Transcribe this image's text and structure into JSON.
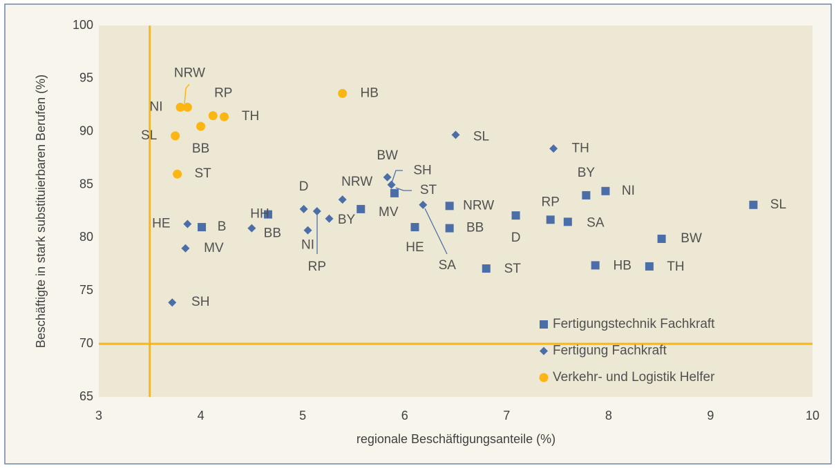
{
  "chart_data": {
    "type": "scatter",
    "xlabel": "regionale Beschäftigungsanteile (%)",
    "ylabel": "Beschäftigte in stark substituierbaren Berufen (%)",
    "xlim": [
      3,
      10
    ],
    "xticks": [
      3,
      4,
      5,
      6,
      7,
      8,
      9,
      10
    ],
    "ylim": [
      65,
      100
    ],
    "yticks": [
      65,
      70,
      75,
      80,
      85,
      90,
      95,
      100
    ],
    "reference_lines": {
      "x": 3.5,
      "y": 70,
      "color": "#fbb614"
    },
    "legend": "lower right",
    "series": [
      {
        "name": "Fertigungstechnik Fachkraft",
        "color": "#4c6ea8",
        "marker": "square",
        "labels": [
          "B",
          "HH",
          "MV",
          "ST",
          "HE",
          "NRW",
          "BB",
          "ST",
          "D",
          "RP",
          "SA",
          "BY",
          "NI",
          "HB",
          "TH",
          "BW",
          "SL"
        ],
        "x": [
          4.01,
          4.66,
          5.57,
          5.9,
          6.1,
          6.44,
          6.44,
          6.8,
          7.09,
          7.43,
          7.6,
          7.78,
          7.97,
          7.87,
          8.4,
          8.52,
          9.42
        ],
        "values": [
          81.0,
          82.2,
          82.7,
          84.2,
          81.0,
          83.0,
          80.9,
          77.1,
          82.1,
          81.7,
          81.5,
          84.0,
          84.4,
          77.4,
          77.3,
          79.9,
          83.1
        ]
      },
      {
        "name": "Fertigung Fachkraft",
        "color": "#4c6ea8",
        "marker": "diamond",
        "labels": [
          "SH",
          "HE",
          "MV",
          "BB",
          "D",
          "NI",
          "RP",
          "BY",
          "NRW",
          "BW",
          "SH",
          "SA",
          "SL",
          "TH"
        ],
        "x": [
          3.72,
          3.87,
          3.85,
          4.5,
          5.01,
          5.05,
          5.14,
          5.26,
          5.39,
          5.83,
          5.87,
          6.18,
          6.5,
          7.46
        ],
        "values": [
          73.9,
          81.3,
          79.0,
          80.9,
          82.7,
          80.7,
          82.5,
          81.8,
          83.6,
          85.7,
          85.0,
          83.1,
          89.7,
          88.4
        ]
      },
      {
        "name": "Verkehr- und Logistik Helfer",
        "color": "#fbb614",
        "marker": "circle",
        "labels": [
          "NI",
          "NRW",
          "RP",
          "TH",
          "BB",
          "SL",
          "ST",
          "HB"
        ],
        "x": [
          3.8,
          3.87,
          4.12,
          4.23,
          4.0,
          3.75,
          3.77,
          5.39
        ],
        "values": [
          92.3,
          92.3,
          91.5,
          91.4,
          90.5,
          89.6,
          86.0,
          93.6
        ]
      }
    ]
  }
}
